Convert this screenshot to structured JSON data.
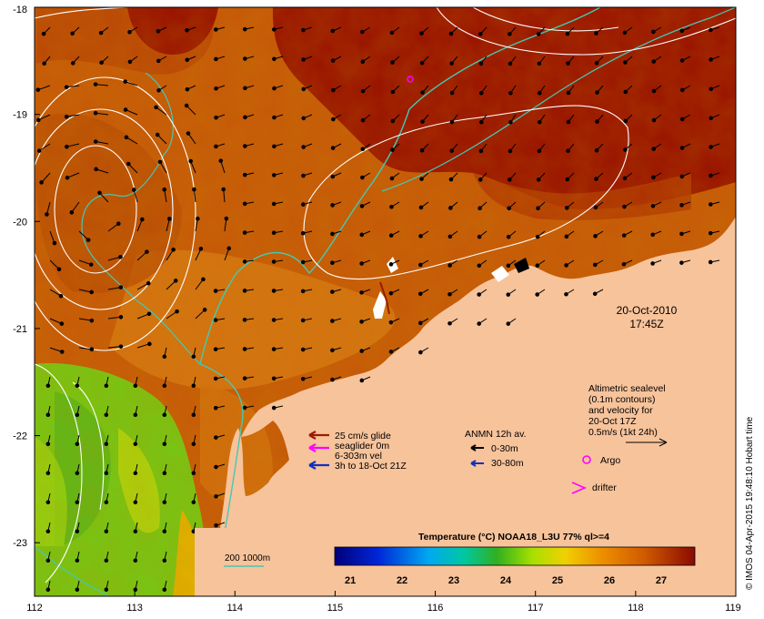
{
  "map": {
    "lon_ticks": [
      "112",
      "113",
      "114",
      "115",
      "116",
      "117",
      "118",
      "119"
    ],
    "lat_ticks": [
      "-18",
      "-19",
      "-20",
      "-21",
      "-22",
      "-23"
    ],
    "lon_range": [
      112,
      119
    ],
    "lat_range": [
      -23.5,
      -18
    ]
  },
  "timestamp": {
    "date": "20-Oct-2010",
    "time": "17:45Z"
  },
  "altimetry_note": {
    "line1": "Altimetric sealevel",
    "line2": "(0.1m contours)",
    "line3": "and velocity for",
    "line4": "20-Oct 17Z",
    "line5": "0.5m/s (1kt 24h)"
  },
  "glider_legend": {
    "line1": "25 cm/s glide",
    "line2": "seaglider 0m",
    "line3": "6-303m vel",
    "line4": "3h to 18-Oct 21Z",
    "colors": [
      "#9b1b00",
      "#ff00ff",
      "#1030c0"
    ]
  },
  "anmn_legend": {
    "title": "ANMN 12h av.",
    "row1": "0-30m",
    "row2": "30-80m",
    "colors": [
      "#000000",
      "#1030c0"
    ]
  },
  "argo_label": "Argo",
  "drifter_label": "drifter",
  "bathy_label": "200  1000m",
  "colorbar": {
    "title": "Temperature (°C) NOAA18_L3U 77% ql>=4",
    "ticks": [
      "21",
      "22",
      "23",
      "24",
      "25",
      "26",
      "27"
    ],
    "range": [
      20.7,
      27.65
    ]
  },
  "credit": "© IMOS 04-Apr-2015 19:48:10 Hobart time",
  "colors": {
    "land": "#f7c39b",
    "warm_sea": "#c65a08",
    "hot_sea": "#9a1500",
    "cool_sea": "#78c414",
    "contour": "#ffffff",
    "isobath": "#46c8b4"
  }
}
